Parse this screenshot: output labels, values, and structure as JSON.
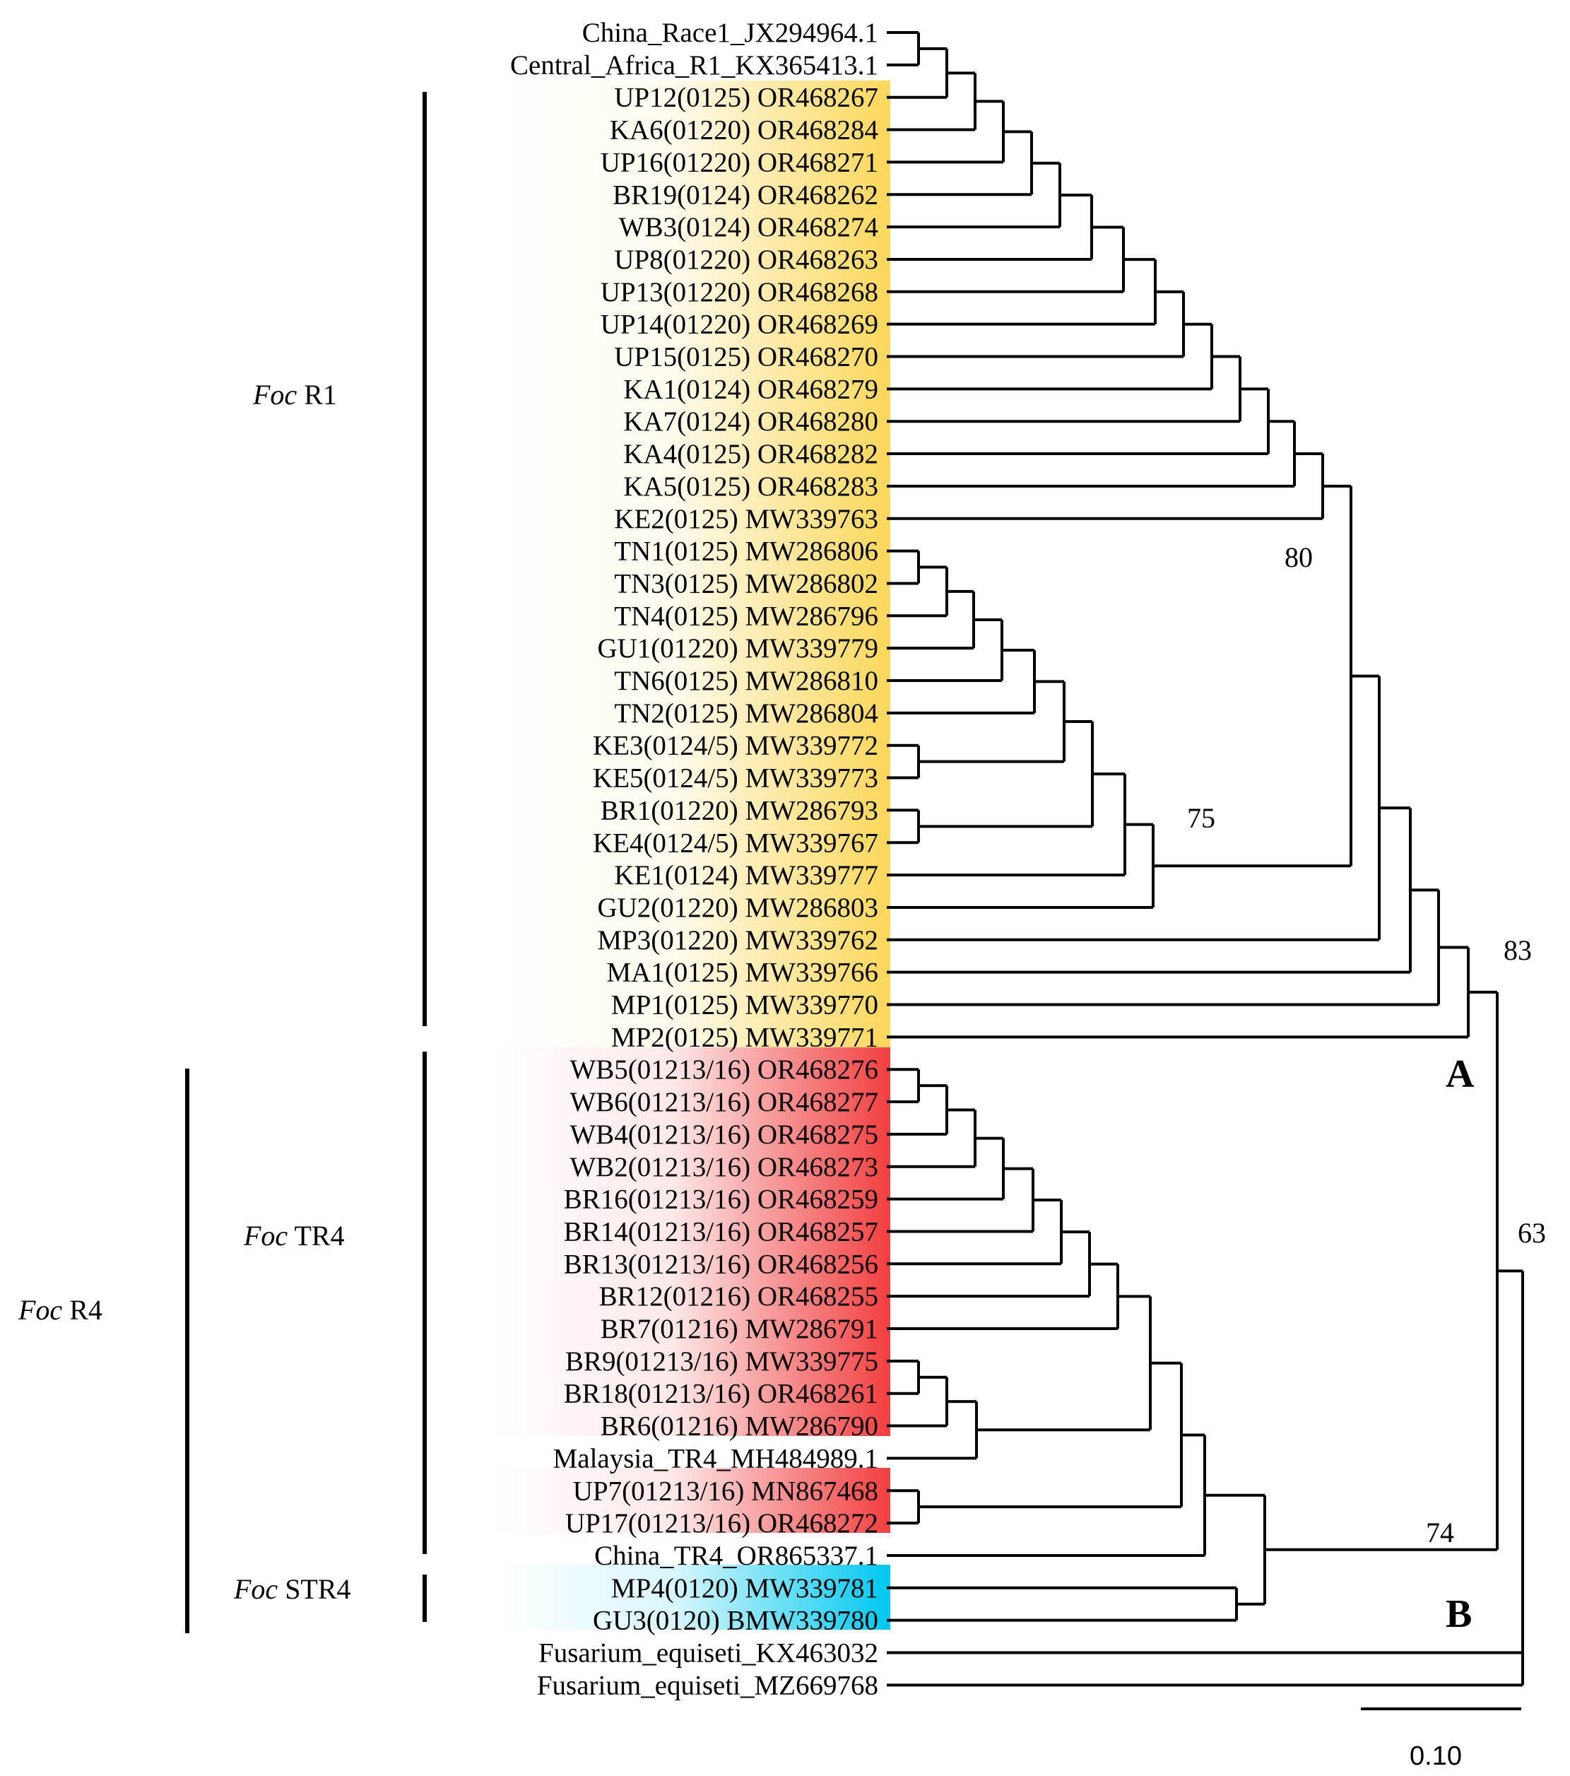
{
  "colors": {
    "r1": "#FCD75A",
    "tr4": "#F23F3F",
    "str4": "#00C8F0",
    "line": "#000000"
  },
  "taxa": [
    {
      "label": "China_Race1_JX294964.1",
      "group": "none"
    },
    {
      "label": "Central_Africa_R1_KX365413.1",
      "group": "none"
    },
    {
      "label": "UP12(0125) OR468267",
      "group": "r1"
    },
    {
      "label": "KA6(01220) OR468284",
      "group": "r1"
    },
    {
      "label": "UP16(01220) OR468271",
      "group": "r1"
    },
    {
      "label": "BR19(0124) OR468262",
      "group": "r1"
    },
    {
      "label": "WB3(0124) OR468274",
      "group": "r1"
    },
    {
      "label": "UP8(01220) OR468263",
      "group": "r1"
    },
    {
      "label": "UP13(01220) OR468268",
      "group": "r1"
    },
    {
      "label": "UP14(01220) OR468269",
      "group": "r1"
    },
    {
      "label": "UP15(0125) OR468270",
      "group": "r1"
    },
    {
      "label": "KA1(0124) OR468279",
      "group": "r1"
    },
    {
      "label": "KA7(0124) OR468280",
      "group": "r1"
    },
    {
      "label": "KA4(0125) OR468282",
      "group": "r1"
    },
    {
      "label": "KA5(0125) OR468283",
      "group": "r1"
    },
    {
      "label": "KE2(0125) MW339763",
      "group": "r1"
    },
    {
      "label": "TN1(0125) MW286806",
      "group": "r1"
    },
    {
      "label": "TN3(0125) MW286802",
      "group": "r1"
    },
    {
      "label": "TN4(0125) MW286796",
      "group": "r1"
    },
    {
      "label": "GU1(01220) MW339779",
      "group": "r1"
    },
    {
      "label": "TN6(0125) MW286810",
      "group": "r1"
    },
    {
      "label": "TN2(0125) MW286804",
      "group": "r1"
    },
    {
      "label": "KE3(0124/5) MW339772",
      "group": "r1"
    },
    {
      "label": "KE5(0124/5) MW339773",
      "group": "r1"
    },
    {
      "label": "BR1(01220) MW286793",
      "group": "r1"
    },
    {
      "label": "KE4(0124/5) MW339767",
      "group": "r1"
    },
    {
      "label": "KE1(0124) MW339777",
      "group": "r1"
    },
    {
      "label": "GU2(01220) MW286803",
      "group": "r1"
    },
    {
      "label": "MP3(01220) MW339762",
      "group": "r1"
    },
    {
      "label": "MA1(0125) MW339766",
      "group": "r1"
    },
    {
      "label": "MP1(0125) MW339770",
      "group": "r1"
    },
    {
      "label": "MP2(0125) MW339771",
      "group": "r1"
    },
    {
      "label": "WB5(01213/16) OR468276",
      "group": "tr4"
    },
    {
      "label": "WB6(01213/16) OR468277",
      "group": "tr4"
    },
    {
      "label": "WB4(01213/16) OR468275",
      "group": "tr4"
    },
    {
      "label": "WB2(01213/16) OR468273",
      "group": "tr4"
    },
    {
      "label": "BR16(01213/16) OR468259",
      "group": "tr4"
    },
    {
      "label": "BR14(01213/16) OR468257",
      "group": "tr4"
    },
    {
      "label": "BR13(01213/16) OR468256",
      "group": "tr4"
    },
    {
      "label": "BR12(01216) OR468255",
      "group": "tr4"
    },
    {
      "label": "BR7(01216) MW286791",
      "group": "tr4"
    },
    {
      "label": "BR9(01213/16) MW339775",
      "group": "tr4"
    },
    {
      "label": "BR18(01213/16) OR468261",
      "group": "tr4"
    },
    {
      "label": "BR6(01216) MW286790",
      "group": "tr4"
    },
    {
      "label": "Malaysia_TR4_MH484989.1",
      "group": "none"
    },
    {
      "label": "UP7(01213/16) MN867468",
      "group": "tr4"
    },
    {
      "label": "UP17(01213/16) OR468272",
      "group": "tr4"
    },
    {
      "label": "China_TR4_OR865337.1",
      "group": "none"
    },
    {
      "label": "MP4(0120) MW339781",
      "group": "str4"
    },
    {
      "label": "GU3(0120) BMW339780",
      "group": "str4"
    },
    {
      "label": "Fusarium_equiseti_KX463032",
      "group": "none"
    },
    {
      "label": "Fusarium_equiseti_MZ669768",
      "group": "none"
    }
  ],
  "bootstrap": [
    "80",
    "75",
    "83",
    "63",
    "74"
  ],
  "groups": {
    "r1": {
      "italic": "Foc",
      "rest": "R1"
    },
    "tr4": {
      "italic": "Foc",
      "rest": "TR4"
    },
    "str4": {
      "italic": "Foc",
      "rest": "STR4"
    },
    "r4": {
      "italic": "Foc",
      "rest": "R4"
    }
  },
  "clade_labels": {
    "a": "A",
    "b": "B"
  },
  "scale_bar": {
    "label": "0.10"
  }
}
